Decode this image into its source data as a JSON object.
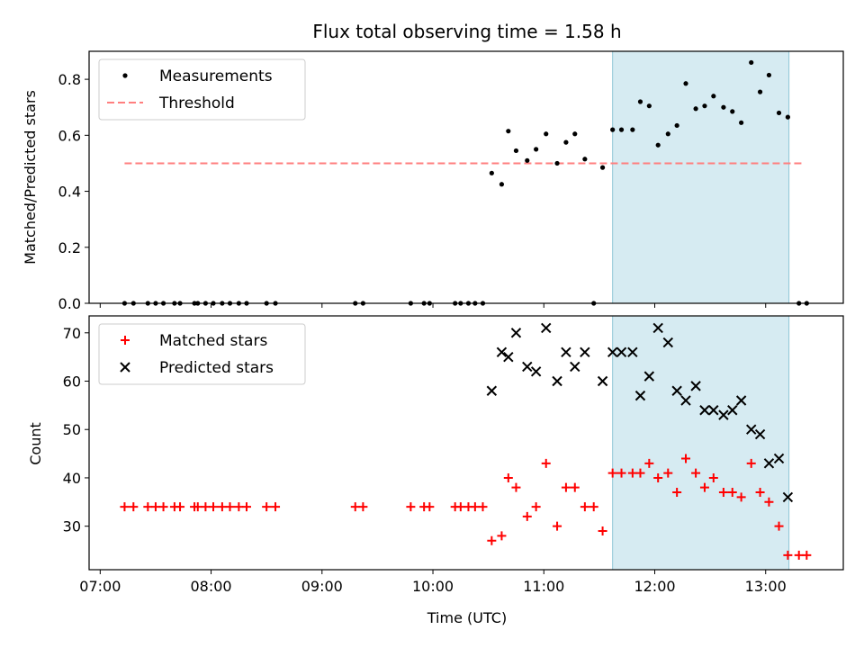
{
  "chart_data": [
    {
      "type": "scatter",
      "title": "Flux total observing time = 1.58 h",
      "xlabel": "",
      "ylabel": "Matched/Predicted stars",
      "xlim": [
        6.9,
        13.7
      ],
      "ylim": [
        0,
        0.9
      ],
      "yticks": [
        0.0,
        0.2,
        0.4,
        0.6,
        0.8
      ],
      "ytick_labels": [
        "0.0",
        "0.2",
        "0.4",
        "0.6",
        "0.8"
      ],
      "legend": {
        "position": "top-left",
        "entries": [
          "Measurements",
          "Threshold"
        ]
      },
      "highlight_span": [
        11.62,
        13.21
      ],
      "threshold": {
        "name": "Threshold",
        "value": 0.5,
        "x": [
          7.22,
          13.35
        ],
        "color": "#ff7f7f"
      },
      "series": [
        {
          "name": "Measurements",
          "marker": "dot",
          "color": "#000000",
          "x": [
            7.22,
            7.3,
            7.43,
            7.5,
            7.57,
            7.67,
            7.72,
            7.85,
            7.88,
            7.95,
            8.02,
            8.1,
            8.17,
            8.25,
            8.32,
            8.5,
            8.58,
            9.3,
            9.37,
            9.8,
            9.92,
            9.97,
            10.2,
            10.25,
            10.32,
            10.38,
            10.45,
            10.53,
            10.62,
            10.68,
            10.75,
            10.85,
            10.93,
            11.02,
            11.12,
            11.2,
            11.28,
            11.37,
            11.45,
            11.53,
            11.62,
            11.7,
            11.8,
            11.87,
            11.95,
            12.03,
            12.12,
            12.2,
            12.28,
            12.37,
            12.45,
            12.53,
            12.62,
            12.7,
            12.78,
            12.87,
            12.95,
            13.03,
            13.12,
            13.2,
            13.3,
            13.37
          ],
          "y": [
            0,
            0,
            0,
            0,
            0,
            0,
            0,
            0,
            0,
            0,
            0,
            0,
            0,
            0,
            0,
            0,
            0,
            0,
            0,
            0,
            0,
            0,
            0,
            0,
            0,
            0,
            0,
            0.465,
            0.425,
            0.615,
            0.545,
            0.51,
            0.55,
            0.605,
            0.5,
            0.575,
            0.605,
            0.515,
            0,
            0.485,
            0.62,
            0.62,
            0.62,
            0.72,
            0.705,
            0.565,
            0.605,
            0.635,
            0.785,
            0.695,
            0.705,
            0.74,
            0.7,
            0.685,
            0.645,
            0.86,
            0.755,
            0.815,
            0.68,
            0.665,
            0,
            0
          ]
        }
      ]
    },
    {
      "type": "scatter",
      "title": "",
      "xlabel": "Time (UTC)",
      "ylabel": "Count",
      "xlim": [
        6.9,
        13.7
      ],
      "ylim": [
        21,
        73.5
      ],
      "xticks": [
        7,
        8,
        9,
        10,
        11,
        12,
        13
      ],
      "xtick_labels": [
        "07:00",
        "08:00",
        "09:00",
        "10:00",
        "11:00",
        "12:00",
        "13:00"
      ],
      "yticks": [
        30,
        40,
        50,
        60,
        70
      ],
      "ytick_labels": [
        "30",
        "40",
        "50",
        "60",
        "70"
      ],
      "legend": {
        "position": "top-left",
        "entries": [
          "Matched stars",
          "Predicted stars"
        ]
      },
      "highlight_span": [
        11.62,
        13.21
      ],
      "series": [
        {
          "name": "Matched stars",
          "marker": "plus",
          "color": "#ff0000",
          "x": [
            7.22,
            7.3,
            7.43,
            7.5,
            7.57,
            7.67,
            7.72,
            7.85,
            7.88,
            7.95,
            8.02,
            8.1,
            8.17,
            8.25,
            8.32,
            8.5,
            8.58,
            9.3,
            9.37,
            9.8,
            9.92,
            9.97,
            10.2,
            10.25,
            10.32,
            10.38,
            10.45,
            10.53,
            10.62,
            10.68,
            10.75,
            10.85,
            10.93,
            11.02,
            11.12,
            11.2,
            11.28,
            11.37,
            11.45,
            11.53,
            11.62,
            11.7,
            11.8,
            11.87,
            11.95,
            12.03,
            12.12,
            12.2,
            12.28,
            12.37,
            12.45,
            12.53,
            12.62,
            12.7,
            12.78,
            12.87,
            12.95,
            13.03,
            13.12,
            13.2,
            13.3,
            13.37
          ],
          "y": [
            34,
            34,
            34,
            34,
            34,
            34,
            34,
            34,
            34,
            34,
            34,
            34,
            34,
            34,
            34,
            34,
            34,
            34,
            34,
            34,
            34,
            34,
            34,
            34,
            34,
            34,
            34,
            27,
            28,
            40,
            38,
            32,
            34,
            43,
            30,
            38,
            38,
            34,
            34,
            29,
            41,
            41,
            41,
            41,
            43,
            40,
            41,
            37,
            44,
            41,
            38,
            40,
            37,
            37,
            36,
            43,
            37,
            35,
            30,
            24,
            24,
            24
          ]
        },
        {
          "name": "Predicted stars",
          "marker": "x",
          "color": "#000000",
          "x": [
            10.53,
            10.62,
            10.68,
            10.75,
            10.85,
            10.93,
            11.02,
            11.12,
            11.2,
            11.28,
            11.37,
            11.53,
            11.62,
            11.7,
            11.8,
            11.87,
            11.95,
            12.03,
            12.12,
            12.2,
            12.28,
            12.37,
            12.45,
            12.53,
            12.62,
            12.7,
            12.78,
            12.87,
            12.95,
            13.03,
            13.12,
            13.2
          ],
          "y": [
            58,
            66,
            65,
            70,
            63,
            62,
            71,
            60,
            66,
            63,
            66,
            60,
            66,
            66,
            66,
            57,
            61,
            71,
            68,
            58,
            56,
            59,
            54,
            54,
            53,
            54,
            56,
            50,
            49,
            43,
            44,
            36
          ]
        }
      ]
    }
  ]
}
